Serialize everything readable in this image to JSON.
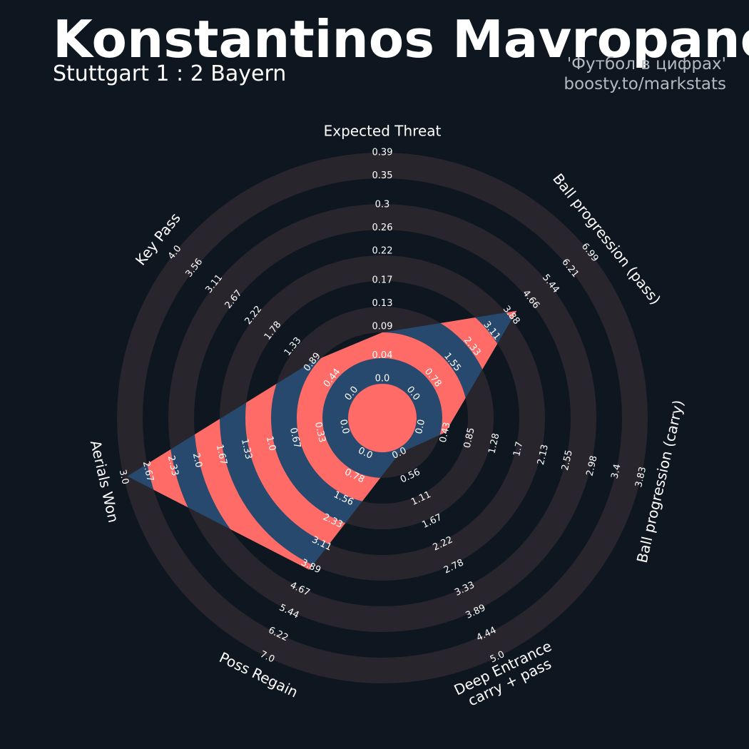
{
  "chart_data": {
    "type": "radar",
    "title": "Konstantinos Mavropanos",
    "subtitle": "Stuttgart 1 : 2 Bayern",
    "credits": [
      "'Футбол в цифрах'",
      "boosty.to/markstats"
    ],
    "radar_color": "#27496d",
    "ring_color": "#ff6b66",
    "band_color": "#29252c",
    "axes": [
      {
        "name": "Expected Threat",
        "value": 0.08,
        "ticks": [
          {
            "value": 0,
            "label": "0.0"
          },
          0.04,
          0.09,
          0.13,
          0.17,
          0.22,
          0.26,
          0.3,
          0.35,
          0.39
        ]
      },
      {
        "name": "Ball progression (pass)",
        "value": 4.1,
        "ticks": [
          {
            "value": 0,
            "label": "0.0"
          },
          0.78,
          1.55,
          2.33,
          3.11,
          3.88,
          4.66,
          5.44,
          6.21,
          6.99
        ]
      },
      {
        "name": "Ball progression (carry)",
        "value": 0.43,
        "ticks": [
          {
            "value": 0,
            "label": "0.0"
          },
          0.43,
          0.85,
          1.28,
          1.7,
          2.13,
          2.55,
          2.98,
          3.4,
          3.83
        ]
      },
      {
        "name": "Deep Entrance\ncarry + pass",
        "value": 0,
        "ticks": [
          {
            "value": 0,
            "label": "0.0"
          },
          0.56,
          1.11,
          1.67,
          2.22,
          2.78,
          3.33,
          3.89,
          4.44,
          {
            "value": 5,
            "label": "5.0"
          }
        ]
      },
      {
        "name": "Poss Regain",
        "value": 4,
        "ticks": [
          {
            "value": 0,
            "label": "0.0"
          },
          0.78,
          1.56,
          2.33,
          3.11,
          3.89,
          4.67,
          5.44,
          6.22,
          {
            "value": 7,
            "label": "7.0"
          }
        ]
      },
      {
        "name": "Aerials Won",
        "value": 2.95,
        "ticks": [
          {
            "value": 0,
            "label": "0.0"
          },
          0.33,
          0.67,
          {
            "value": 1,
            "label": "1.0"
          },
          1.33,
          1.67,
          {
            "value": 2,
            "label": "2.0"
          },
          2.33,
          2.67,
          {
            "value": 3,
            "label": "3.0"
          }
        ]
      },
      {
        "name": "Key Pass",
        "value": 0.9,
        "ticks": [
          {
            "value": 0,
            "label": "0.0"
          },
          0.44,
          0.89,
          1.33,
          1.78,
          2.22,
          2.67,
          3.11,
          3.56,
          {
            "value": 4,
            "label": "4.0"
          }
        ]
      }
    ]
  }
}
